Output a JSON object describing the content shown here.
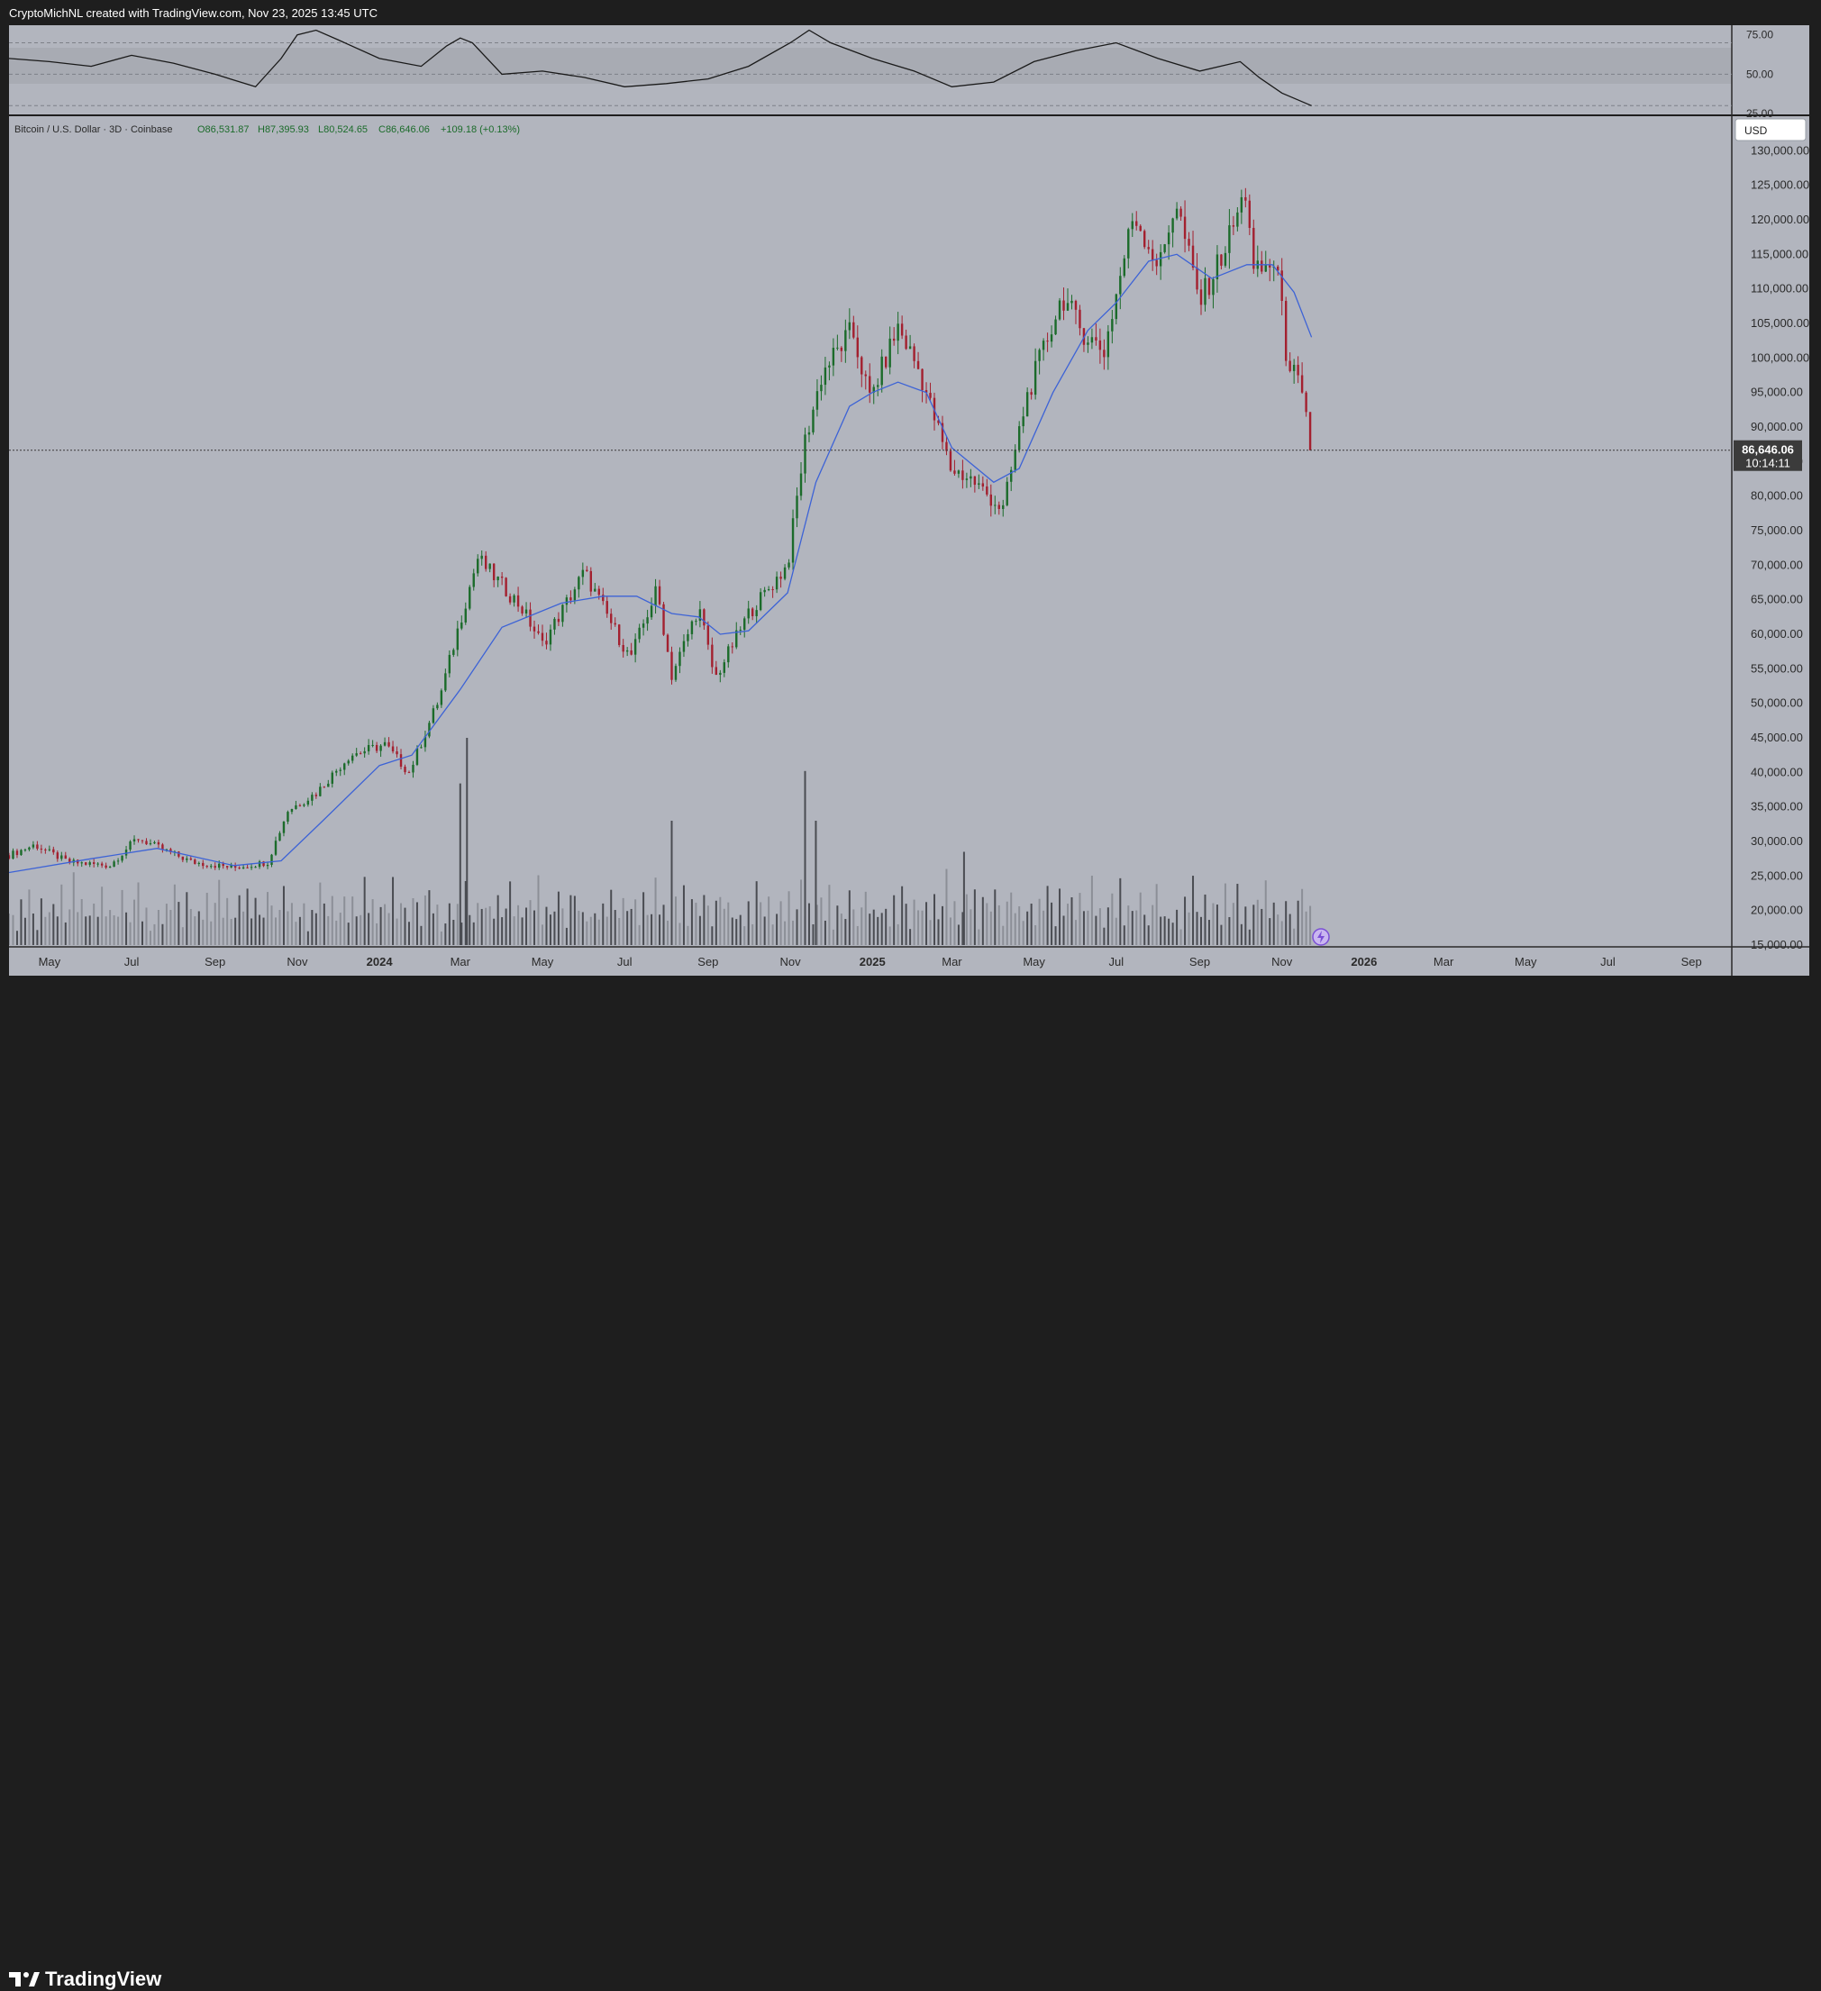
{
  "header": {
    "attribution": "CryptoMichNL created with TradingView.com, Nov 23, 2025 13:45 UTC"
  },
  "legend": {
    "symbol": "Bitcoin / U.S. Dollar · 3D · Coinbase",
    "open": "O86,531.87",
    "high": "H87,395.93",
    "low": "L80,524.65",
    "close": "C86,646.06",
    "change": "+109.18 (+0.13%)"
  },
  "currency_button": "USD",
  "last_price": {
    "price": "86,646.06",
    "countdown": "10:14:11"
  },
  "footer": {
    "brand": "TradingView"
  },
  "colors": {
    "up": "#1b6b2a",
    "down": "#a3202f",
    "ma": "#3d63d6",
    "background": "#b2b5be",
    "frame": "#1e1e1e"
  },
  "chart_data": [
    {
      "type": "line",
      "title": "RSI",
      "ylim": [
        25,
        80
      ],
      "yticks": [
        "75.00",
        "50.00",
        "25.00"
      ],
      "reference_levels": [
        70,
        50,
        30
      ],
      "grid": false,
      "x": [
        "2023-04-01",
        "2023-05-01",
        "2023-06-01",
        "2023-07-01",
        "2023-08-01",
        "2023-09-01",
        "2023-10-01",
        "2023-10-20",
        "2023-11-01",
        "2023-11-15",
        "2023-12-01",
        "2024-01-01",
        "2024-02-01",
        "2024-02-20",
        "2024-03-01",
        "2024-03-10",
        "2024-04-01",
        "2024-05-01",
        "2024-06-01",
        "2024-07-01",
        "2024-08-01",
        "2024-09-01",
        "2024-10-01",
        "2024-11-01",
        "2024-11-15",
        "2024-12-01",
        "2025-01-01",
        "2025-02-01",
        "2025-03-01",
        "2025-04-01",
        "2025-05-01",
        "2025-06-01",
        "2025-07-01",
        "2025-08-01",
        "2025-09-01",
        "2025-10-01",
        "2025-10-15",
        "2025-11-01",
        "2025-11-23"
      ],
      "y": [
        60,
        58,
        55,
        62,
        57,
        50,
        42,
        60,
        75,
        78,
        72,
        60,
        55,
        68,
        73,
        70,
        50,
        52,
        48,
        42,
        44,
        47,
        55,
        70,
        78,
        70,
        60,
        52,
        42,
        45,
        58,
        65,
        70,
        60,
        52,
        58,
        48,
        38,
        30
      ]
    },
    {
      "type": "candlestick",
      "title": "Bitcoin / U.S. Dollar · 3D · Coinbase",
      "ylim": [
        15000,
        135000
      ],
      "yticks": [
        "130,000.00",
        "125,000.00",
        "120,000.00",
        "115,000.00",
        "110,000.00",
        "105,000.00",
        "100,000.00",
        "95,000.00",
        "90,000.00",
        "85,000.00",
        "80,000.00",
        "75,000.00",
        "70,000.00",
        "65,000.00",
        "60,000.00",
        "55,000.00",
        "50,000.00",
        "45,000.00",
        "40,000.00",
        "35,000.00",
        "30,000.00",
        "25,000.00",
        "20,000.00",
        "15,000.00"
      ],
      "xticks": [
        "May",
        "Jul",
        "Sep",
        "Nov",
        "2024",
        "Mar",
        "May",
        "Jul",
        "Sep",
        "Nov",
        "2025",
        "Mar",
        "May",
        "Jul",
        "Sep",
        "Nov",
        "2026",
        "Mar",
        "May",
        "Jul",
        "Sep"
      ],
      "xtick_dates": [
        "2023-05-01",
        "2023-07-01",
        "2023-09-01",
        "2023-11-01",
        "2024-01-01",
        "2024-03-01",
        "2024-05-01",
        "2024-07-01",
        "2024-09-01",
        "2024-11-01",
        "2025-01-01",
        "2025-03-01",
        "2025-05-01",
        "2025-07-01",
        "2025-09-01",
        "2025-11-01",
        "2026-01-01",
        "2026-03-01",
        "2026-05-01",
        "2026-07-01",
        "2026-09-01"
      ],
      "x_range": [
        "2023-04-01",
        "2026-10-01"
      ],
      "price_anchors": {
        "dates": [
          "2023-04-01",
          "2023-04-20",
          "2023-05-15",
          "2023-06-15",
          "2023-07-05",
          "2023-08-15",
          "2023-09-15",
          "2023-10-10",
          "2023-10-25",
          "2023-11-15",
          "2023-12-10",
          "2024-01-05",
          "2024-01-23",
          "2024-02-15",
          "2024-03-01",
          "2024-03-14",
          "2024-04-15",
          "2024-05-01",
          "2024-06-01",
          "2024-07-05",
          "2024-07-25",
          "2024-08-05",
          "2024-08-25",
          "2024-09-06",
          "2024-10-01",
          "2024-10-30",
          "2024-11-12",
          "2024-11-25",
          "2024-12-17",
          "2024-12-30",
          "2025-01-20",
          "2025-02-05",
          "2025-02-28",
          "2025-03-15",
          "2025-04-08",
          "2025-04-25",
          "2025-05-22",
          "2025-06-05",
          "2025-06-22",
          "2025-07-14",
          "2025-08-02",
          "2025-08-14",
          "2025-09-01",
          "2025-09-20",
          "2025-10-06",
          "2025-10-11",
          "2025-10-28",
          "2025-11-04",
          "2025-11-15",
          "2025-11-23"
        ],
        "close": [
          28000,
          29500,
          27000,
          26500,
          30500,
          27000,
          26200,
          27000,
          34500,
          37000,
          42500,
          44000,
          40000,
          51000,
          62000,
          71000,
          64000,
          58500,
          69000,
          56500,
          66500,
          54000,
          64000,
          53500,
          63000,
          70000,
          88000,
          98000,
          104000,
          94000,
          104500,
          98000,
          84000,
          82500,
          78000,
          94000,
          109000,
          104000,
          101000,
          121000,
          113000,
          123000,
          108000,
          116000,
          124500,
          112000,
          114000,
          101000,
          95000,
          86646
        ]
      },
      "moving_average": {
        "dates": [
          "2023-04-01",
          "2023-06-01",
          "2023-07-20",
          "2023-09-15",
          "2023-10-20",
          "2023-11-20",
          "2024-01-01",
          "2024-01-25",
          "2024-03-01",
          "2024-04-01",
          "2024-05-15",
          "2024-06-15",
          "2024-07-10",
          "2024-08-05",
          "2024-08-25",
          "2024-09-10",
          "2024-10-01",
          "2024-10-30",
          "2024-11-20",
          "2024-12-15",
          "2025-01-01",
          "2025-01-20",
          "2025-02-10",
          "2025-03-01",
          "2025-04-01",
          "2025-04-20",
          "2025-05-15",
          "2025-06-10",
          "2025-07-01",
          "2025-07-25",
          "2025-08-15",
          "2025-09-10",
          "2025-10-06",
          "2025-10-25",
          "2025-11-10",
          "2025-11-23"
        ],
        "values": [
          25500,
          27500,
          29000,
          26500,
          27200,
          33000,
          41000,
          42500,
          52000,
          61000,
          64500,
          65500,
          65500,
          63000,
          62500,
          60000,
          60500,
          66000,
          82000,
          93000,
          95000,
          96500,
          95000,
          87000,
          82000,
          84000,
          95000,
          104000,
          108000,
          114000,
          115000,
          111500,
          113500,
          113500,
          109500,
          103000
        ]
      },
      "volume_pattern": [
        3,
        4,
        2,
        5,
        3,
        8,
        4,
        2,
        6,
        3,
        4,
        5,
        2,
        7,
        3,
        4,
        9,
        3,
        5,
        2,
        4,
        6,
        3,
        8,
        2,
        5,
        4,
        3,
        6,
        4,
        2,
        5,
        7,
        3,
        4,
        2
      ],
      "volume_spikes": [
        {
          "date": "2024-03-06",
          "value": 100
        },
        {
          "date": "2024-03-01",
          "value": 78
        },
        {
          "date": "2024-08-05",
          "value": 60
        },
        {
          "date": "2024-11-12",
          "value": 84
        },
        {
          "date": "2024-11-20",
          "value": 60
        },
        {
          "date": "2025-03-10",
          "value": 45
        }
      ],
      "last_close": 86646.06
    }
  ]
}
